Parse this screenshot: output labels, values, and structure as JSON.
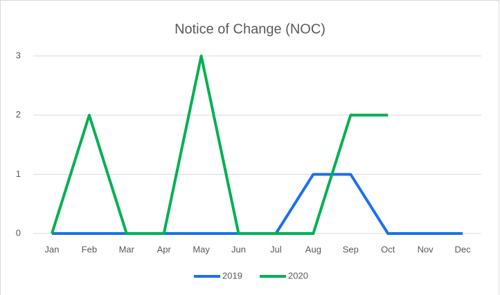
{
  "chart_data": {
    "type": "line",
    "title": "Notice of Change (NOC)",
    "categories": [
      "Jan",
      "Feb",
      "Mar",
      "Apr",
      "May",
      "Jun",
      "Jul",
      "Aug",
      "Sep",
      "Oct",
      "Nov",
      "Dec"
    ],
    "series": [
      {
        "name": "2019",
        "color": "#1c6ff0",
        "values": [
          0,
          0,
          0,
          0,
          0,
          0,
          0,
          1,
          1,
          0,
          0,
          0
        ]
      },
      {
        "name": "2020",
        "color": "#00b050",
        "values": [
          0,
          2,
          0,
          0,
          3,
          0,
          0,
          0,
          2,
          2,
          null,
          null
        ]
      }
    ],
    "ylim": [
      0,
      3
    ],
    "yticks": [
      0,
      1,
      2,
      3
    ],
    "grid": true,
    "legend": "bottom"
  }
}
